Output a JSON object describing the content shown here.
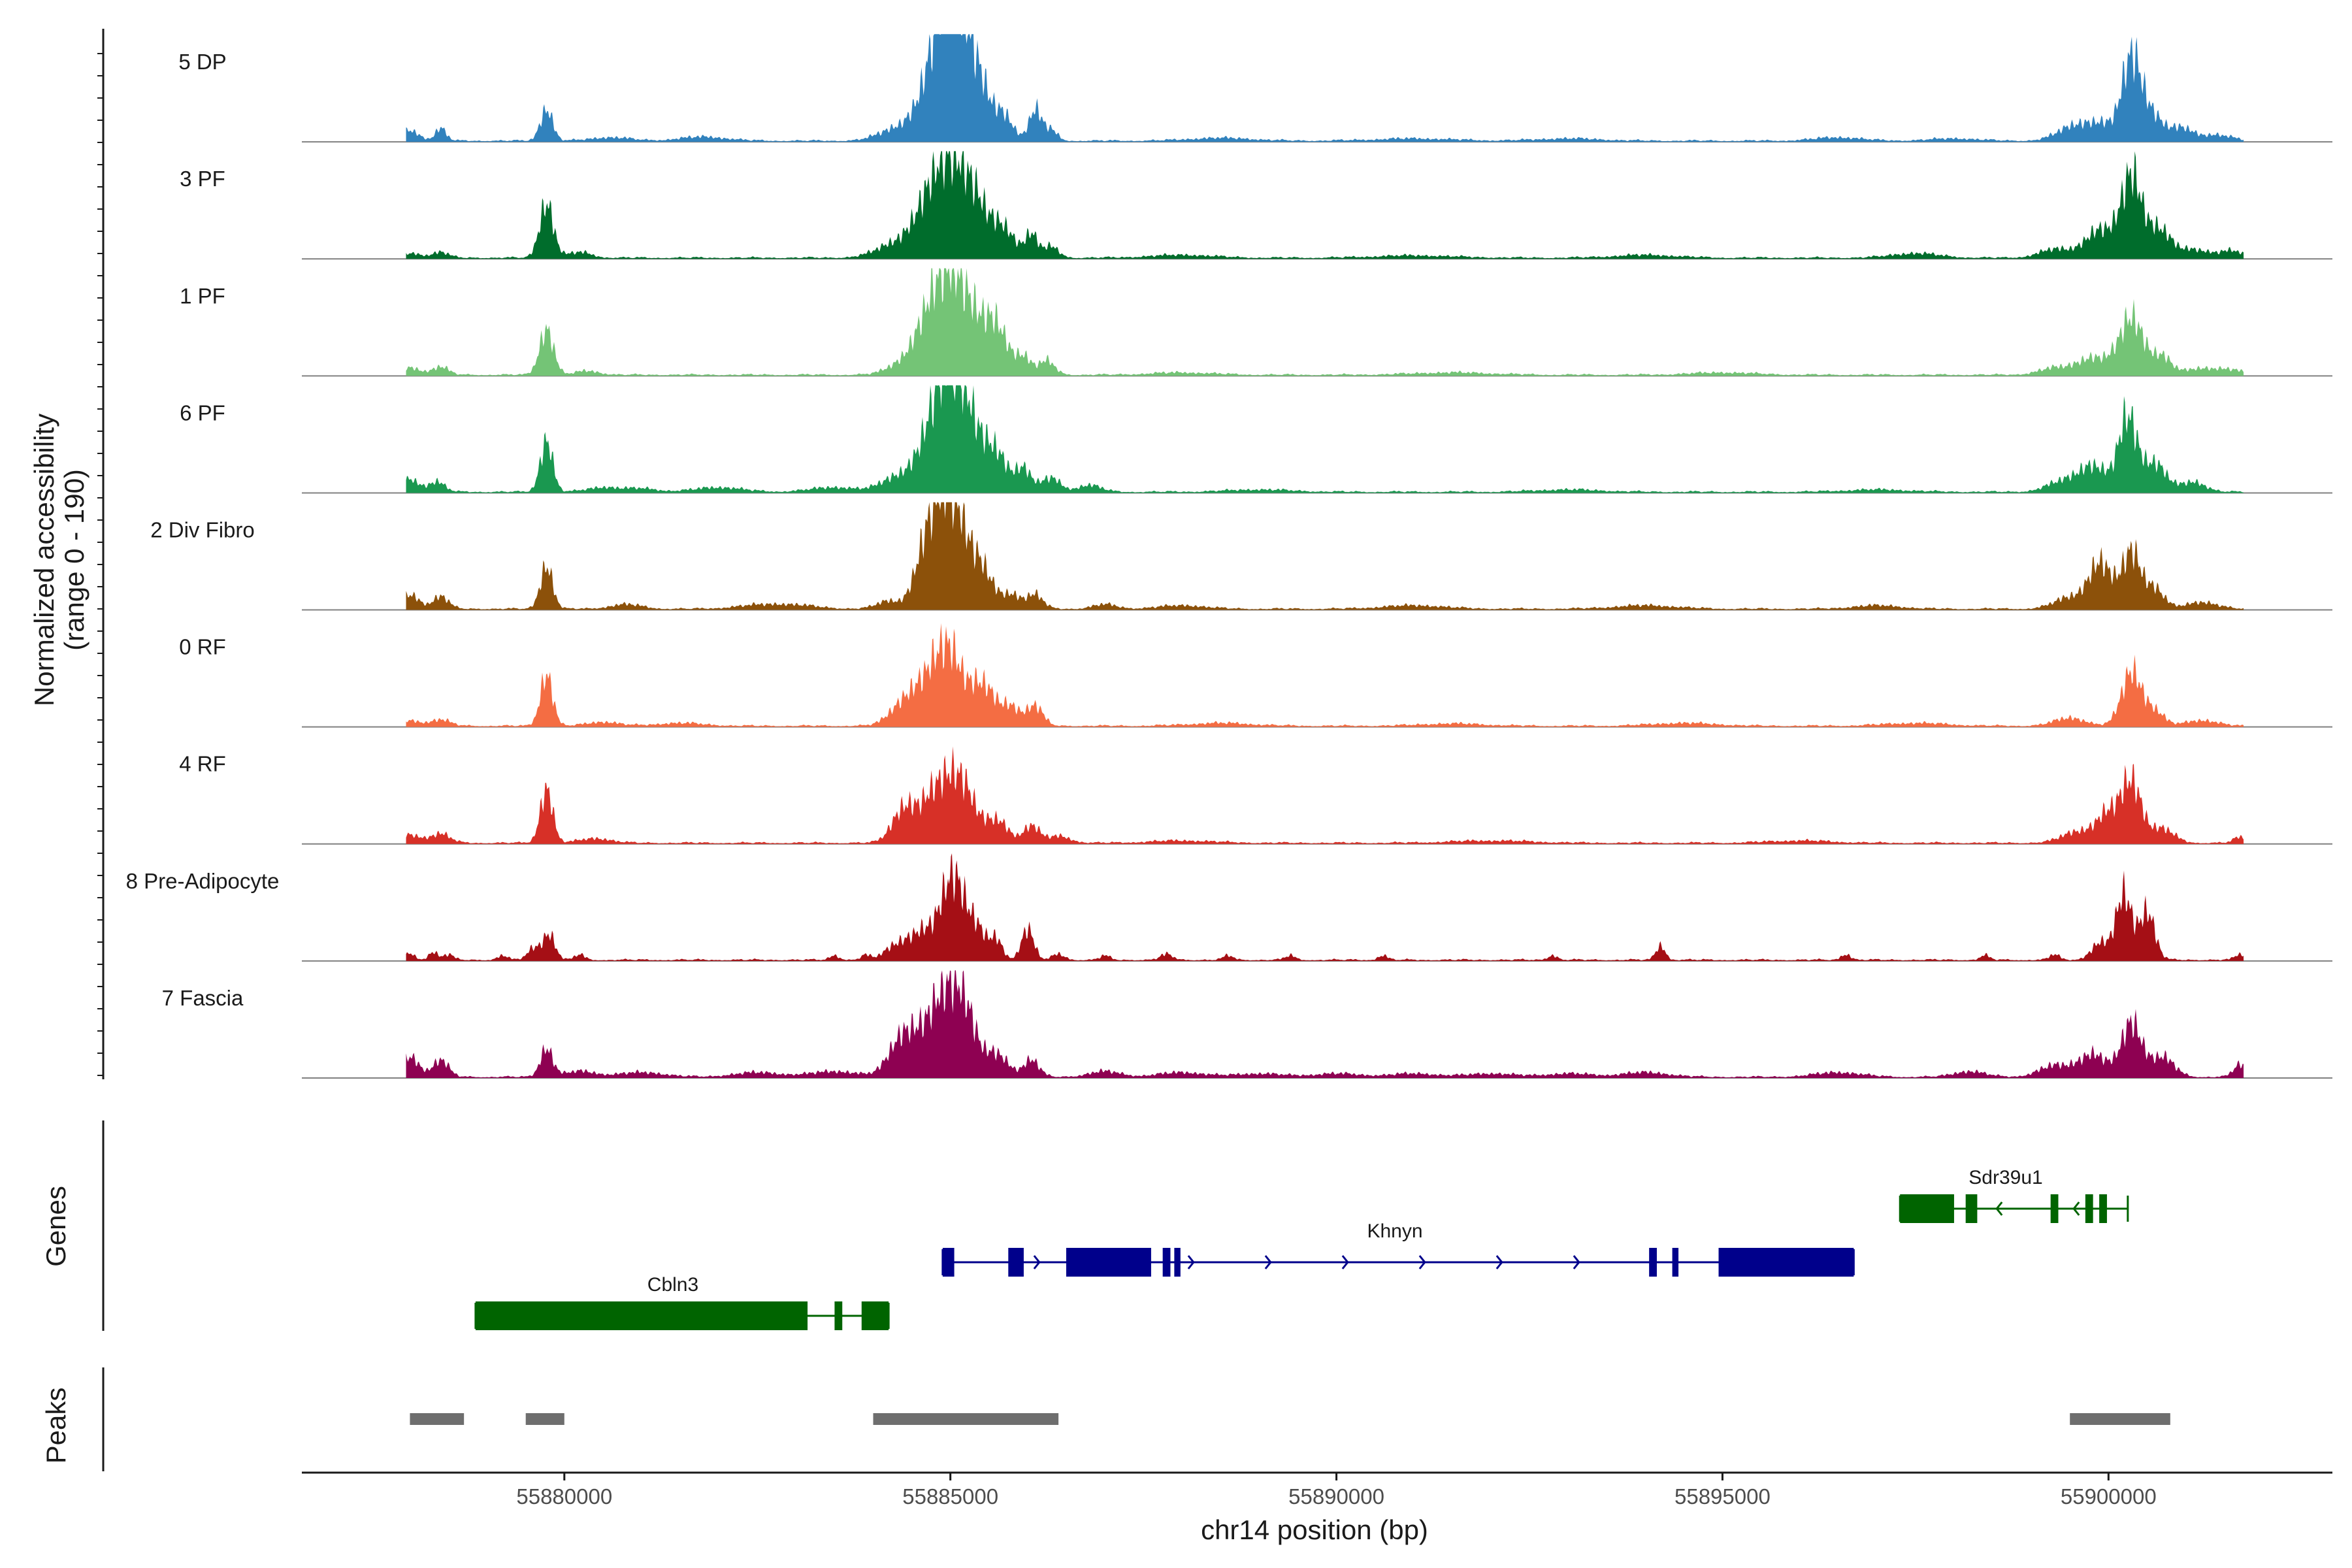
{
  "chart_data": {
    "type": "area",
    "title": "",
    "ylabel": "Normalized accessibility",
    "ylabel_range": "(range 0 - 190)",
    "xlabel": "chr14 position (bp)",
    "xlim": [
      55876600,
      55902900
    ],
    "x_ticks": [
      55880000,
      55885000,
      55890000,
      55895000,
      55900000
    ],
    "x_tick_labels": [
      "55880000",
      "55885000",
      "55890000",
      "55895000",
      "55900000"
    ],
    "ylim": [
      0,
      190
    ],
    "signal_range_bp": [
      55877950,
      55901750
    ],
    "series": [
      {
        "name": "5 DP",
        "color": "#3182bd",
        "peaks": [
          [
            55878000,
            18,
            120
          ],
          [
            55878400,
            22,
            70
          ],
          [
            55879770,
            55,
            80
          ],
          [
            55880600,
            6,
            250
          ],
          [
            55881800,
            7,
            300
          ],
          [
            55884200,
            12,
            200
          ],
          [
            55884600,
            28,
            250
          ],
          [
            55884950,
            180,
            220
          ],
          [
            55885100,
            120,
            200
          ],
          [
            55885400,
            60,
            150
          ],
          [
            55885700,
            40,
            120
          ],
          [
            55886100,
            55,
            80
          ],
          [
            55886300,
            20,
            80
          ],
          [
            55888500,
            5,
            400
          ],
          [
            55891000,
            4,
            500
          ],
          [
            55893000,
            4,
            400
          ],
          [
            55896500,
            6,
            300
          ],
          [
            55898000,
            4,
            300
          ],
          [
            55899500,
            18,
            200
          ],
          [
            55899900,
            30,
            250
          ],
          [
            55900300,
            135,
            120
          ],
          [
            55900550,
            45,
            150
          ],
          [
            55900950,
            22,
            150
          ],
          [
            55901400,
            10,
            200
          ]
        ]
      },
      {
        "name": "3 PF",
        "color": "#006d2c",
        "peaks": [
          [
            55878000,
            8,
            150
          ],
          [
            55878400,
            10,
            100
          ],
          [
            55879770,
            95,
            90
          ],
          [
            55880200,
            10,
            150
          ],
          [
            55884300,
            25,
            250
          ],
          [
            55884650,
            40,
            180
          ],
          [
            55884950,
            150,
            220
          ],
          [
            55885300,
            90,
            200
          ],
          [
            55885700,
            45,
            150
          ],
          [
            55886050,
            40,
            80
          ],
          [
            55886300,
            20,
            100
          ],
          [
            55888000,
            5,
            400
          ],
          [
            55891000,
            4,
            500
          ],
          [
            55894000,
            5,
            400
          ],
          [
            55897500,
            8,
            300
          ],
          [
            55899300,
            15,
            200
          ],
          [
            55899900,
            50,
            200
          ],
          [
            55900300,
            140,
            130
          ],
          [
            55900650,
            50,
            150
          ],
          [
            55901100,
            15,
            200
          ],
          [
            55901600,
            12,
            150
          ]
        ]
      },
      {
        "name": "1 PF",
        "color": "#74c476",
        "peaks": [
          [
            55878000,
            12,
            150
          ],
          [
            55878400,
            14,
            100
          ],
          [
            55879770,
            80,
            90
          ],
          [
            55880300,
            7,
            150
          ],
          [
            55884400,
            22,
            200
          ],
          [
            55884650,
            35,
            150
          ],
          [
            55884900,
            130,
            200
          ],
          [
            55885200,
            110,
            220
          ],
          [
            55885600,
            75,
            150
          ],
          [
            55885950,
            30,
            100
          ],
          [
            55886250,
            25,
            100
          ],
          [
            55888000,
            4,
            400
          ],
          [
            55891500,
            4,
            500
          ],
          [
            55895000,
            4,
            400
          ],
          [
            55899300,
            12,
            200
          ],
          [
            55899800,
            30,
            200
          ],
          [
            55900300,
            100,
            160
          ],
          [
            55900700,
            30,
            120
          ],
          [
            55901200,
            12,
            200
          ],
          [
            55901600,
            8,
            150
          ]
        ]
      },
      {
        "name": "6 PF",
        "color": "#1a9850",
        "peaks": [
          [
            55878000,
            22,
            120
          ],
          [
            55878350,
            18,
            100
          ],
          [
            55879770,
            90,
            80
          ],
          [
            55880500,
            8,
            200
          ],
          [
            55881000,
            6,
            200
          ],
          [
            55882000,
            8,
            300
          ],
          [
            55883500,
            8,
            300
          ],
          [
            55884300,
            25,
            200
          ],
          [
            55884700,
            60,
            180
          ],
          [
            55884950,
            150,
            180
          ],
          [
            55885200,
            125,
            200
          ],
          [
            55885600,
            60,
            150
          ],
          [
            55885950,
            40,
            100
          ],
          [
            55886300,
            25,
            120
          ],
          [
            55886800,
            12,
            150
          ],
          [
            55889000,
            4,
            400
          ],
          [
            55893000,
            4,
            400
          ],
          [
            55897000,
            4,
            400
          ],
          [
            55899400,
            18,
            200
          ],
          [
            55899800,
            45,
            180
          ],
          [
            55900250,
            130,
            120
          ],
          [
            55900600,
            50,
            150
          ],
          [
            55901100,
            18,
            150
          ]
        ]
      },
      {
        "name": "2 Div Fibro",
        "color": "#8c510a",
        "peaks": [
          [
            55878000,
            25,
            120
          ],
          [
            55878400,
            22,
            100
          ],
          [
            55879770,
            75,
            80
          ],
          [
            55880800,
            8,
            200
          ],
          [
            55882500,
            6,
            300
          ],
          [
            55883000,
            6,
            300
          ],
          [
            55884200,
            14,
            150
          ],
          [
            55884600,
            30,
            120
          ],
          [
            55884850,
            180,
            180
          ],
          [
            55885100,
            110,
            150
          ],
          [
            55885400,
            70,
            150
          ],
          [
            55885800,
            25,
            120
          ],
          [
            55886100,
            25,
            100
          ],
          [
            55887000,
            8,
            150
          ],
          [
            55888000,
            6,
            300
          ],
          [
            55891000,
            6,
            400
          ],
          [
            55894000,
            6,
            400
          ],
          [
            55897000,
            6,
            300
          ],
          [
            55899500,
            20,
            200
          ],
          [
            55899900,
            80,
            150
          ],
          [
            55900300,
            100,
            120
          ],
          [
            55900600,
            35,
            120
          ],
          [
            55901200,
            12,
            200
          ]
        ]
      },
      {
        "name": "0 RF",
        "color": "#f46d43",
        "peaks": [
          [
            55878000,
            9,
            150
          ],
          [
            55878400,
            11,
            120
          ],
          [
            55879770,
            90,
            80
          ],
          [
            55880500,
            7,
            200
          ],
          [
            55881500,
            5,
            300
          ],
          [
            55884400,
            40,
            180
          ],
          [
            55884750,
            80,
            180
          ],
          [
            55885000,
            105,
            150
          ],
          [
            55885400,
            75,
            180
          ],
          [
            55885800,
            30,
            120
          ],
          [
            55886100,
            35,
            100
          ],
          [
            55888500,
            5,
            400
          ],
          [
            55891500,
            4,
            400
          ],
          [
            55894500,
            5,
            400
          ],
          [
            55897500,
            5,
            400
          ],
          [
            55899500,
            14,
            200
          ],
          [
            55900300,
            95,
            130
          ],
          [
            55900600,
            25,
            120
          ],
          [
            55901200,
            10,
            200
          ]
        ]
      },
      {
        "name": "4 RF",
        "color": "#d73027",
        "peaks": [
          [
            55878000,
            14,
            150
          ],
          [
            55878400,
            16,
            120
          ],
          [
            55879770,
            95,
            80
          ],
          [
            55880400,
            8,
            200
          ],
          [
            55884400,
            60,
            150
          ],
          [
            55884700,
            40,
            150
          ],
          [
            55884950,
            95,
            180
          ],
          [
            55885200,
            70,
            150
          ],
          [
            55885600,
            40,
            150
          ],
          [
            55886050,
            30,
            100
          ],
          [
            55886400,
            12,
            150
          ],
          [
            55888000,
            4,
            400
          ],
          [
            55892000,
            4,
            500
          ],
          [
            55896000,
            4,
            400
          ],
          [
            55899600,
            20,
            200
          ],
          [
            55900000,
            50,
            150
          ],
          [
            55900300,
            105,
            130
          ],
          [
            55900700,
            25,
            150
          ],
          [
            55901700,
            10,
            80
          ]
        ]
      },
      {
        "name": "8 Pre-Adipocyte",
        "color": "#a50f15",
        "peaks": [
          [
            55878000,
            12,
            60
          ],
          [
            55878300,
            14,
            60
          ],
          [
            55878500,
            10,
            60
          ],
          [
            55879200,
            8,
            60
          ],
          [
            55879600,
            20,
            80
          ],
          [
            55879800,
            45,
            80
          ],
          [
            55880200,
            10,
            60
          ],
          [
            55883500,
            8,
            60
          ],
          [
            55883900,
            8,
            60
          ],
          [
            55884300,
            25,
            150
          ],
          [
            55884600,
            40,
            150
          ],
          [
            55884900,
            60,
            150
          ],
          [
            55885050,
            100,
            120
          ],
          [
            55885300,
            65,
            150
          ],
          [
            55885600,
            30,
            80
          ],
          [
            55886000,
            55,
            80
          ],
          [
            55886400,
            10,
            80
          ],
          [
            55887000,
            8,
            60
          ],
          [
            55887800,
            10,
            80
          ],
          [
            55888600,
            8,
            60
          ],
          [
            55889400,
            8,
            60
          ],
          [
            55890600,
            8,
            60
          ],
          [
            55892800,
            8,
            60
          ],
          [
            55894200,
            25,
            60
          ],
          [
            55896600,
            10,
            60
          ],
          [
            55898400,
            8,
            60
          ],
          [
            55899300,
            10,
            60
          ],
          [
            55899900,
            30,
            120
          ],
          [
            55900200,
            115,
            100
          ],
          [
            55900500,
            85,
            100
          ],
          [
            55901700,
            10,
            60
          ]
        ]
      },
      {
        "name": "7 Fascia",
        "color": "#8e0152",
        "peaks": [
          [
            55878000,
            35,
            120
          ],
          [
            55878400,
            30,
            100
          ],
          [
            55879770,
            50,
            80
          ],
          [
            55880200,
            10,
            200
          ],
          [
            55881000,
            8,
            300
          ],
          [
            55882500,
            8,
            300
          ],
          [
            55883500,
            10,
            300
          ],
          [
            55884400,
            75,
            180
          ],
          [
            55884700,
            40,
            150
          ],
          [
            55884950,
            130,
            180
          ],
          [
            55885200,
            90,
            150
          ],
          [
            55885600,
            40,
            150
          ],
          [
            55886050,
            30,
            100
          ],
          [
            55887000,
            10,
            200
          ],
          [
            55888000,
            8,
            300
          ],
          [
            55889000,
            6,
            300
          ],
          [
            55890000,
            6,
            300
          ],
          [
            55891000,
            6,
            300
          ],
          [
            55892000,
            6,
            300
          ],
          [
            55893000,
            6,
            300
          ],
          [
            55894000,
            8,
            300
          ],
          [
            55896500,
            8,
            300
          ],
          [
            55898200,
            10,
            200
          ],
          [
            55899300,
            20,
            200
          ],
          [
            55899800,
            40,
            180
          ],
          [
            55900300,
            95,
            130
          ],
          [
            55900700,
            35,
            150
          ],
          [
            55901700,
            22,
            80
          ]
        ]
      }
    ],
    "genes": [
      {
        "name": "Sdr39u1",
        "color": "#006400",
        "strand": "-",
        "start": 55897300,
        "end": 55900250,
        "exons": [
          [
            55897300,
            55898000
          ],
          [
            55898150,
            55898300
          ],
          [
            55899250,
            55899350
          ],
          [
            55899700,
            55899800
          ],
          [
            55899880,
            55899980
          ]
        ]
      },
      {
        "name": "Khnyn",
        "color": "#00008b",
        "strand": "+",
        "start": 55884900,
        "end": 55896700,
        "exons": [
          [
            55884900,
            55885050
          ],
          [
            55885750,
            55885950
          ],
          [
            55886500,
            55887600
          ],
          [
            55887750,
            55887850
          ],
          [
            55887900,
            55887980
          ],
          [
            55894050,
            55894150
          ],
          [
            55894350,
            55894430
          ],
          [
            55894950,
            55896700
          ]
        ]
      },
      {
        "name": "Cbln3",
        "color": "#006400",
        "strand": "+",
        "start": 55878850,
        "end": 55884200,
        "exons": [
          [
            55878850,
            55883150
          ],
          [
            55883500,
            55883600
          ],
          [
            55883850,
            55884200
          ]
        ]
      }
    ],
    "gene_track_label": "Genes",
    "peaks_track_label": "Peaks",
    "peak_regions": [
      [
        55878000,
        55878700
      ],
      [
        55879500,
        55880000
      ],
      [
        55884000,
        55886400
      ],
      [
        55899500,
        55900800
      ]
    ]
  }
}
